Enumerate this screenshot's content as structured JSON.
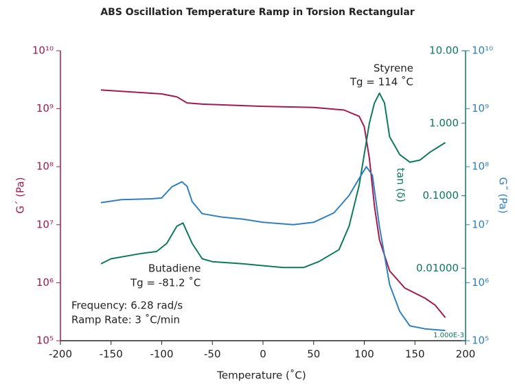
{
  "chart_data": {
    "type": "line",
    "title": "ABS Oscillation Temperature Ramp in Torsion Rectangular",
    "xlabel": "Temperature (˚C)",
    "ylabel": "G´ (Pa)",
    "y2label": "tan (δ)",
    "y3label": "G˝ (Pa)",
    "xlim": [
      -200,
      200
    ],
    "xticks": [
      -200,
      -150,
      -100,
      -50,
      0,
      50,
      100,
      150,
      200
    ],
    "ylim": [
      100000,
      10000000000
    ],
    "log_y": true,
    "yticks": [
      {
        "value": 100000,
        "label": "10⁵"
      },
      {
        "value": 1000000,
        "label": "10⁶"
      },
      {
        "value": 10000000,
        "label": "10⁷"
      },
      {
        "value": 100000000,
        "label": "10⁸"
      },
      {
        "value": 1000000000,
        "label": "10⁹"
      },
      {
        "value": 10000000000,
        "label": "10¹⁰"
      }
    ],
    "y2lim": [
      0.001,
      10
    ],
    "log_y2": true,
    "y2ticks": [
      {
        "value": 0.001,
        "label": "1.000E-3"
      },
      {
        "value": 0.01,
        "label": "0.01000"
      },
      {
        "value": 0.1,
        "label": "0.1000"
      },
      {
        "value": 1,
        "label": "1.000"
      },
      {
        "value": 10,
        "label": "10.00"
      }
    ],
    "y3lim": [
      100000,
      10000000000
    ],
    "log_y3": true,
    "y3ticks": [
      {
        "value": 100000,
        "label": "10⁵"
      },
      {
        "value": 1000000,
        "label": "10⁶"
      },
      {
        "value": 10000000,
        "label": "10⁷"
      },
      {
        "value": 100000000,
        "label": "10⁸"
      },
      {
        "value": 1000000000,
        "label": "10⁹"
      },
      {
        "value": 10000000000,
        "label": "10¹⁰"
      }
    ],
    "ycolor": "#a5174e",
    "y2color": "#0b7a5a",
    "y3color": "#2d7fc1",
    "series": [
      {
        "axis": "y",
        "color": "#a5174e",
        "x": [
          -160,
          -100,
          -85,
          -75,
          -60,
          0,
          50,
          80,
          95,
          100,
          105,
          110,
          115,
          125,
          140,
          160,
          170,
          180
        ],
        "values": [
          2100000000,
          1800000000,
          1600000000,
          1260000000,
          1200000000,
          1100000000,
          1050000000,
          950000000,
          740000000,
          490000000,
          140000000,
          21000000,
          5500000,
          1600000,
          810000,
          540000,
          410000,
          250000
        ]
      },
      {
        "axis": "y2",
        "color": "#0b7a5a",
        "x": [
          -160,
          -150,
          -120,
          -105,
          -95,
          -85,
          -79,
          -70,
          -60,
          -50,
          -20,
          20,
          40,
          55,
          75,
          85,
          95,
          105,
          110,
          115,
          120,
          125,
          135,
          145,
          155,
          165,
          180
        ],
        "values": [
          0.0115,
          0.0135,
          0.016,
          0.017,
          0.022,
          0.038,
          0.042,
          0.022,
          0.0135,
          0.0123,
          0.0115,
          0.0102,
          0.0102,
          0.0123,
          0.018,
          0.038,
          0.14,
          1.0,
          1.9,
          2.6,
          1.9,
          0.65,
          0.37,
          0.29,
          0.31,
          0.4,
          0.54
        ]
      },
      {
        "axis": "y3",
        "color": "#2d7fc1",
        "x": [
          -160,
          -140,
          -110,
          -100,
          -90,
          -80,
          -75,
          -70,
          -60,
          -40,
          -20,
          0,
          30,
          50,
          70,
          85,
          95,
          102,
          108,
          115,
          125,
          135,
          145,
          160,
          180
        ],
        "values": [
          24000000,
          27000000,
          28000000,
          29000000,
          45000000,
          55000000,
          46000000,
          25000000,
          15500000,
          13500000,
          12500000,
          11000000,
          10000000,
          11000000,
          16000000,
          32000000,
          63000000,
          100000000,
          72000000,
          9300000,
          930000,
          320000,
          180000,
          160000,
          150000
        ]
      }
    ],
    "annotations": [
      "Styrene",
      "Tg = 114 ˚C",
      "Butadiene",
      "Tg = -81.2 ˚C",
      "Frequency: 6.28 rad/s",
      "Ramp Rate: 3 ˚C/min"
    ]
  }
}
